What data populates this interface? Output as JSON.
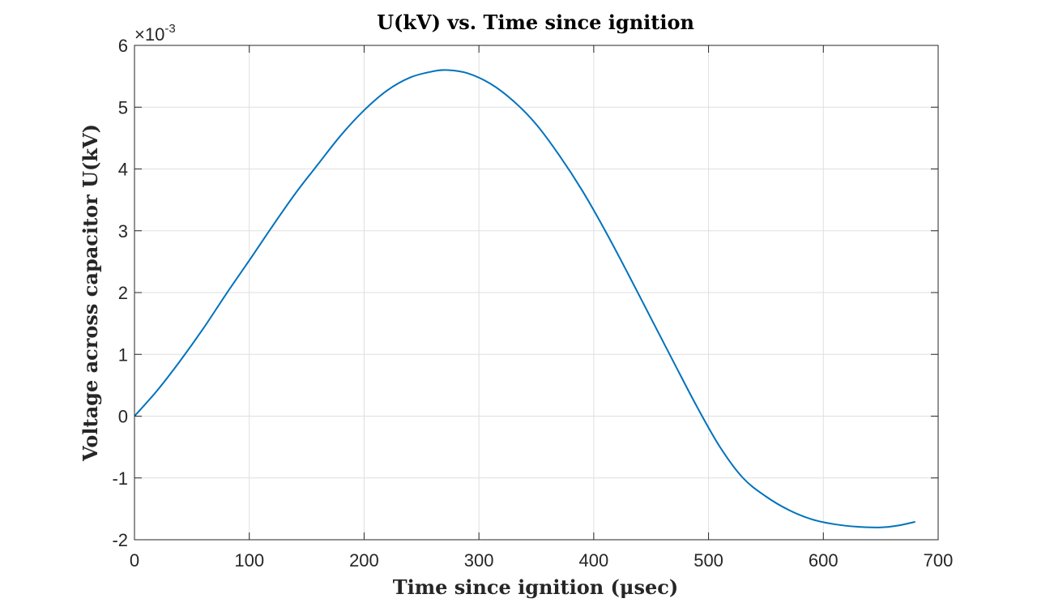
{
  "chart_data": {
    "type": "line",
    "title": "U(kV) vs. Time since ignition",
    "xlabel": "Time since ignition (μsec)",
    "ylabel": "Voltage across capacitor U(kV)",
    "y_exponent_label": "×10",
    "y_exponent_power": "-3",
    "xlim": [
      0,
      700
    ],
    "ylim": [
      -2,
      6
    ],
    "x_ticks": [
      0,
      100,
      200,
      300,
      400,
      500,
      600,
      700
    ],
    "y_ticks": [
      -2,
      -1,
      0,
      1,
      2,
      3,
      4,
      5,
      6
    ],
    "x_tick_labels": [
      "0",
      "100",
      "200",
      "300",
      "400",
      "500",
      "600",
      "700"
    ],
    "y_tick_labels": [
      "-2",
      "-1",
      "0",
      "1",
      "2",
      "3",
      "4",
      "5",
      "6"
    ],
    "grid": true,
    "series": [
      {
        "color": "#0072BD",
        "x": [
          0,
          20,
          40,
          60,
          80,
          100,
          120,
          140,
          160,
          180,
          200,
          220,
          240,
          260,
          273,
          290,
          310,
          330,
          350,
          370,
          390,
          410,
          430,
          450,
          470,
          490,
          510,
          530,
          550,
          570,
          590,
          610,
          630,
          650,
          665,
          680
        ],
        "y": [
          0,
          0.42,
          0.9,
          1.42,
          1.98,
          2.52,
          3.07,
          3.6,
          4.08,
          4.55,
          4.95,
          5.27,
          5.48,
          5.58,
          5.6,
          5.55,
          5.38,
          5.1,
          4.72,
          4.22,
          3.65,
          3.0,
          2.3,
          1.58,
          0.86,
          0.15,
          -0.5,
          -1.0,
          -1.3,
          -1.52,
          -1.67,
          -1.75,
          -1.79,
          -1.8,
          -1.77,
          -1.71
        ]
      }
    ]
  }
}
